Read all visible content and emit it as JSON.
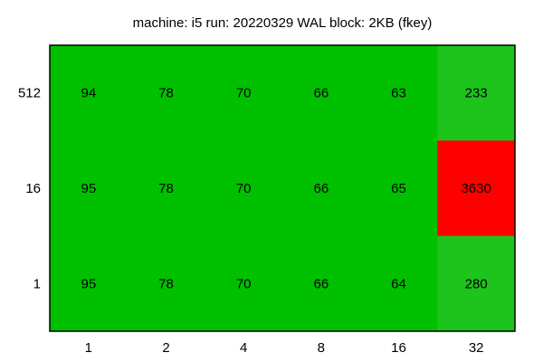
{
  "chart_data": {
    "type": "heatmap",
    "title": "machine: i5 run: 20220329 WAL block: 2KB (fkey)",
    "xlabel": "",
    "ylabel": "",
    "x_categories": [
      "1",
      "2",
      "4",
      "8",
      "16",
      "32"
    ],
    "y_categories": [
      "512",
      "16",
      "1"
    ],
    "values": [
      [
        94,
        78,
        70,
        66,
        63,
        233
      ],
      [
        95,
        78,
        70,
        66,
        65,
        3630
      ],
      [
        95,
        78,
        70,
        66,
        64,
        280
      ]
    ],
    "colors": [
      [
        "#00c000",
        "#00c000",
        "#00c000",
        "#00c000",
        "#00c000",
        "#1cc41c"
      ],
      [
        "#00c000",
        "#00c000",
        "#00c000",
        "#00c000",
        "#00c000",
        "#ff0000"
      ],
      [
        "#00c000",
        "#00c000",
        "#00c000",
        "#00c000",
        "#00c000",
        "#1cc41c"
      ]
    ],
    "grid": false,
    "legend": "none"
  }
}
